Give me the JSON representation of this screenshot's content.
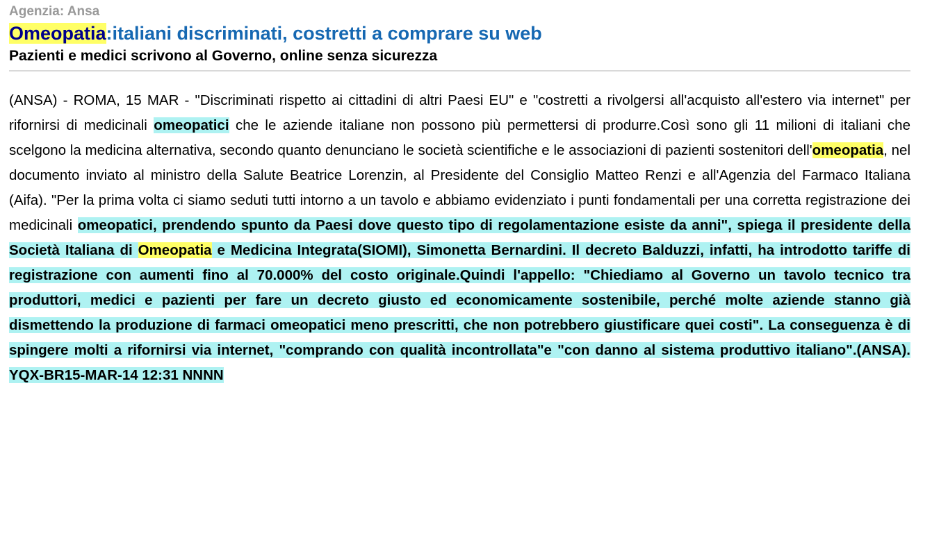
{
  "header": {
    "agency": "Agenzia: Ansa",
    "title_highlight": "Omeopatia",
    "title_rest": ":italiani discriminati, costretti a comprare su web",
    "subtitle": "Pazienti e medici scrivono al Governo, online senza sicurezza"
  },
  "colors": {
    "agency_gray": "#999999",
    "title_navy": "#00008b",
    "title_blue": "#1668b2",
    "highlight_yellow": "#ffff66",
    "highlight_cyan": "#aef2f2"
  },
  "article": {
    "segments": [
      {
        "style": "normal",
        "text": "(ANSA) - ROMA, 15 MAR - \"Discriminati rispetto ai cittadini di altri Paesi EU\" e \"costretti a rivolgersi all'acquisto all'estero via internet\" per rifornirsi di medicinali "
      },
      {
        "style": "cyan-bold",
        "text": "omeopatici"
      },
      {
        "style": "normal",
        "text": " che le aziende italiane non possono più permettersi di produrre.Così sono gli 11 milioni di italiani che scelgono la medicina alternativa, secondo quanto denunciano le società scientifiche e le associazioni di pazienti sostenitori dell'"
      },
      {
        "style": "yellow-bold",
        "text": "omeopatia"
      },
      {
        "style": "normal",
        "text": ", nel documento inviato al ministro della Salute Beatrice Lorenzin, al Presidente del Consiglio Matteo Renzi e all'Agenzia del Farmaco Italiana (Aifa). \"Per la prima volta ci siamo seduti tutti intorno a un tavolo e abbiamo evidenziato i punti fondamentali per una corretta registrazione dei medicinali "
      },
      {
        "style": "cyan-bold",
        "text": "omeopatici, prendendo spunto da Paesi dove questo tipo di regolamentazione esiste da anni\", spiega il presidente della Società Italiana di "
      },
      {
        "style": "yellow-bold",
        "text": "Omeopatia"
      },
      {
        "style": "cyan-bold",
        "text": " e Medicina Integrata(SIOMI), Simonetta Bernardini. Il decreto Balduzzi, infatti, ha introdotto tariffe di registrazione con aumenti fino al 70.000% del costo originale.Quindi l'appello: \"Chiediamo al Governo un tavolo tecnico tra produttori, medici e pazienti per fare un decreto giusto ed economicamente sostenibile, perché molte aziende stanno già dismettendo la produzione di farmaci omeopatici meno prescritti, che non potrebbero giustificare quei costi\". La conseguenza è di spingere molti a rifornirsi via internet, \"comprando con qualità incontrollata\"e \"con danno al sistema produttivo italiano\".(ANSA). YQX-BR15-MAR-14 12:31 NNNN"
      }
    ]
  }
}
